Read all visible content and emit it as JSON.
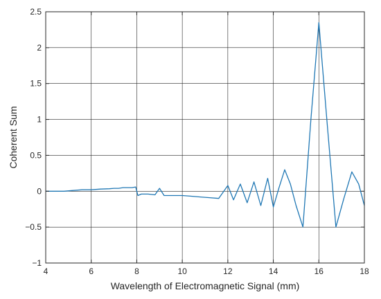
{
  "chart_data": {
    "type": "line",
    "title": "",
    "xlabel": "Wavelength of Electromagnetic Signal (mm)",
    "ylabel": "Coherent Sum",
    "xlim": [
      4,
      18
    ],
    "ylim": [
      -1,
      2.5
    ],
    "grid": true,
    "x_ticks": [
      4,
      6,
      8,
      10,
      12,
      14,
      16,
      18
    ],
    "y_ticks": [
      -1,
      -0.5,
      0,
      0.5,
      1,
      1.5,
      2,
      2.5
    ],
    "x_tick_labels": [
      "4",
      "6",
      "8",
      "10",
      "12",
      "14",
      "16",
      "18"
    ],
    "y_tick_labels": [
      "−1",
      "−0.5",
      "0",
      "0.5",
      "1",
      "1.5",
      "2",
      "2.5"
    ],
    "line_color": "#1f77b4",
    "series": [
      {
        "x": [
          4.0,
          4.8,
          5.2,
          5.6,
          6.0,
          6.4,
          6.8,
          7.0,
          7.2,
          7.4,
          7.6,
          7.8,
          7.95,
          8.05,
          8.2,
          8.5,
          8.8,
          9.0,
          9.2,
          9.6,
          10.0,
          10.4,
          10.8,
          11.2,
          11.6,
          12.0,
          12.25,
          12.55,
          12.85,
          13.15,
          13.45,
          13.75,
          14.0,
          14.25,
          14.5,
          14.75,
          15.0,
          15.3,
          15.65,
          16.0,
          16.35,
          16.75,
          17.1,
          17.45,
          17.75,
          18.0
        ],
        "y": [
          0.0,
          0.0,
          0.01,
          0.02,
          0.02,
          0.03,
          0.035,
          0.04,
          0.04,
          0.05,
          0.05,
          0.05,
          0.06,
          -0.06,
          -0.04,
          -0.04,
          -0.05,
          0.04,
          -0.06,
          -0.06,
          -0.06,
          -0.07,
          -0.08,
          -0.09,
          -0.1,
          0.08,
          -0.12,
          0.1,
          -0.16,
          0.13,
          -0.2,
          0.18,
          -0.22,
          0.05,
          0.3,
          0.1,
          -0.2,
          -0.5,
          1.0,
          2.35,
          1.0,
          -0.5,
          -0.1,
          0.27,
          0.1,
          -0.2
        ]
      }
    ]
  }
}
